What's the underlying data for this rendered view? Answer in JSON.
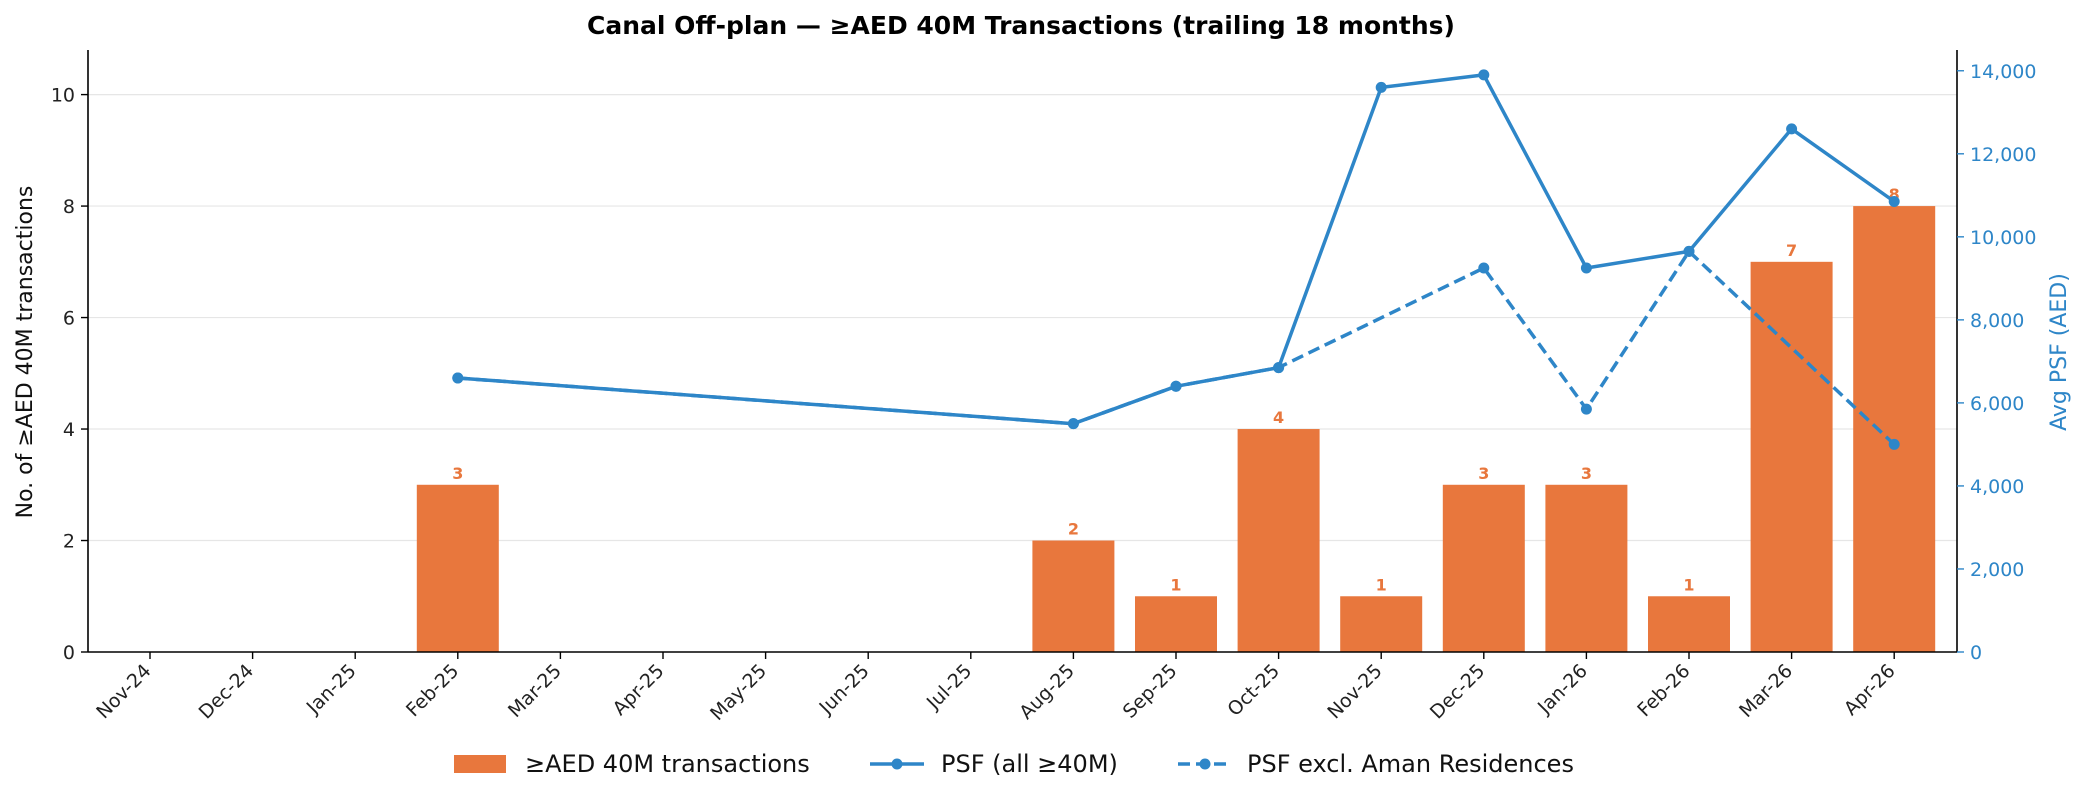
{
  "chart_data": {
    "type": "bar+line",
    "title": "Canal Off-plan — ≥AED 40M Transactions (trailing 18 months)",
    "categories": [
      "Nov-24",
      "Dec-24",
      "Jan-25",
      "Feb-25",
      "Mar-25",
      "Apr-25",
      "May-25",
      "Jun-25",
      "Jul-25",
      "Aug-25",
      "Sep-25",
      "Oct-25",
      "Nov-25",
      "Dec-25",
      "Jan-26",
      "Feb-26",
      "Mar-26",
      "Apr-26"
    ],
    "ylabel": "No. of ≥AED 40M transactions",
    "y2label": "Avg PSF (AED)",
    "ylim": [
      0,
      10.8
    ],
    "y2lim": [
      0,
      14500
    ],
    "yticks": [
      0,
      2,
      4,
      6,
      8,
      10
    ],
    "y2ticks": [
      "0",
      "2,000",
      "4,000",
      "6,000",
      "8,000",
      "10,000",
      "12,000",
      "14,000"
    ],
    "y2tick_values": [
      0,
      2000,
      4000,
      6000,
      8000,
      10000,
      12000,
      14000
    ],
    "grid": true,
    "legend_position": "bottom-center",
    "series": [
      {
        "name": "≥AED 40M transactions",
        "kind": "bar",
        "axis": "left",
        "color": "#E8773D",
        "values": [
          0,
          0,
          0,
          3,
          0,
          0,
          0,
          0,
          0,
          2,
          1,
          4,
          1,
          3,
          3,
          1,
          7,
          8
        ],
        "labels": [
          "",
          "",
          "",
          "3",
          "",
          "",
          "",
          "",
          "",
          "2",
          "1",
          "4",
          "1",
          "3",
          "3",
          "1",
          "7",
          "8"
        ]
      },
      {
        "name": "PSF (all ≥40M)",
        "kind": "line",
        "axis": "right",
        "style": "solid",
        "color": "#2E86C8",
        "values": [
          null,
          null,
          null,
          6600,
          null,
          null,
          null,
          null,
          null,
          5500,
          6400,
          6850,
          13600,
          13900,
          9250,
          9650,
          12600,
          10850
        ]
      },
      {
        "name": "PSF excl. Aman Residences",
        "kind": "line",
        "axis": "right",
        "style": "dashed",
        "color": "#2E86C8",
        "values": [
          null,
          null,
          null,
          6600,
          null,
          null,
          null,
          null,
          null,
          5500,
          6400,
          6850,
          null,
          9250,
          5850,
          9650,
          null,
          5000
        ]
      }
    ]
  }
}
